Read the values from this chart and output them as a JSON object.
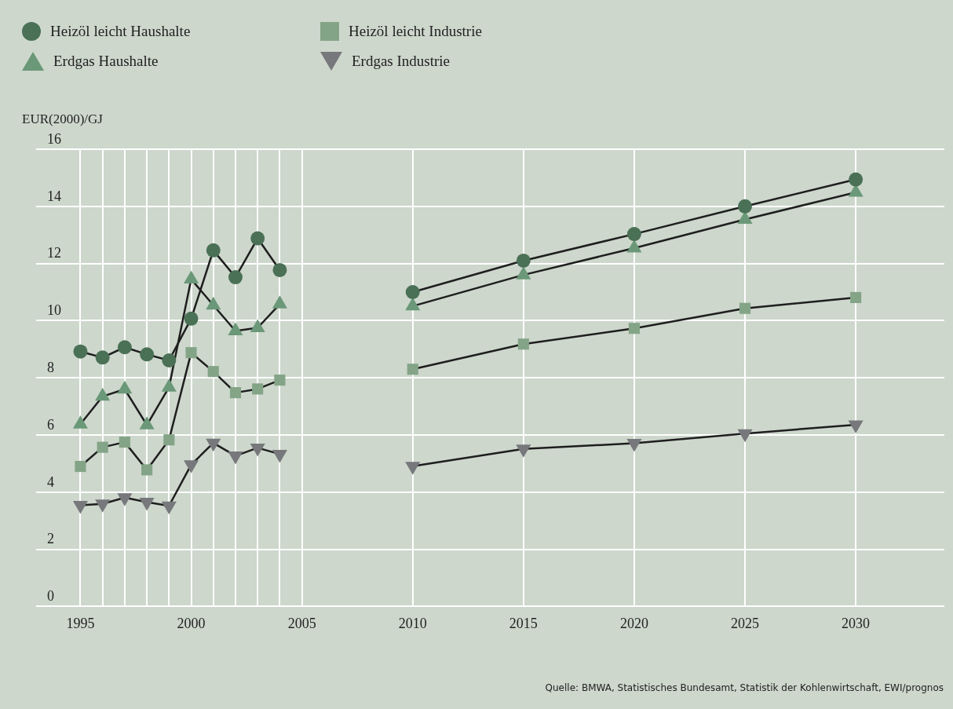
{
  "chart_data": {
    "type": "line",
    "ylabel": "EUR(2000)/GJ",
    "x": [
      1995,
      1996,
      1997,
      1998,
      1999,
      2000,
      2001,
      2002,
      2003,
      2004,
      2005,
      2010,
      2015,
      2020,
      2025,
      2030
    ],
    "xlim": [
      1993,
      2034
    ],
    "xticks": [
      1995,
      {
        "value": 1996,
        "label": null
      },
      {
        "value": 1997,
        "label": null
      },
      {
        "value": 1998,
        "label": null
      },
      {
        "value": 1999,
        "label": null
      },
      2000,
      {
        "value": 2001,
        "label": null
      },
      {
        "value": 2002,
        "label": null
      },
      {
        "value": 2003,
        "label": null
      },
      {
        "value": 2004,
        "label": null
      },
      2005,
      2010,
      2015,
      2020,
      2025,
      2030
    ],
    "ylim": [
      0,
      16
    ],
    "yticks": [
      0,
      2,
      4,
      6,
      8,
      10,
      12,
      14,
      16
    ],
    "grid": true,
    "legend": "top left",
    "series": [
      {
        "name": "Heizöl leicht Haushalte",
        "color": "#4a7056",
        "marker": "circle",
        "values": [
          8.92,
          8.71,
          9.07,
          8.82,
          8.61,
          10.07,
          12.46,
          11.52,
          12.88,
          11.77,
          null,
          11.0,
          12.1,
          13.03,
          14.0,
          14.94
        ]
      },
      {
        "name": "Heizöl leicht Industrie",
        "color": "#84a487",
        "marker": "square",
        "values": [
          4.9,
          5.57,
          5.75,
          4.78,
          5.83,
          8.88,
          8.22,
          7.48,
          7.61,
          7.92,
          null,
          8.3,
          9.18,
          9.73,
          10.43,
          10.81
        ]
      },
      {
        "name": "Erdgas Haushalte",
        "color": "#6a9878",
        "marker": "triangle",
        "values": [
          6.38,
          7.35,
          7.6,
          6.35,
          7.67,
          11.45,
          10.54,
          9.64,
          9.75,
          10.58,
          null,
          10.51,
          11.6,
          12.54,
          13.54,
          14.49
        ]
      },
      {
        "name": "Erdgas Industrie",
        "color": "#77787c",
        "marker": "triangle-down",
        "values": [
          3.54,
          3.59,
          3.81,
          3.65,
          3.52,
          4.96,
          5.72,
          5.27,
          5.55,
          5.33,
          null,
          4.91,
          5.51,
          5.71,
          6.05,
          6.36
        ]
      }
    ],
    "annotations": [
      "Quelle: BMWA, Statistisches Bundesamt, Statistik der Kohlenwirtschaft, EWI/prognos"
    ]
  }
}
